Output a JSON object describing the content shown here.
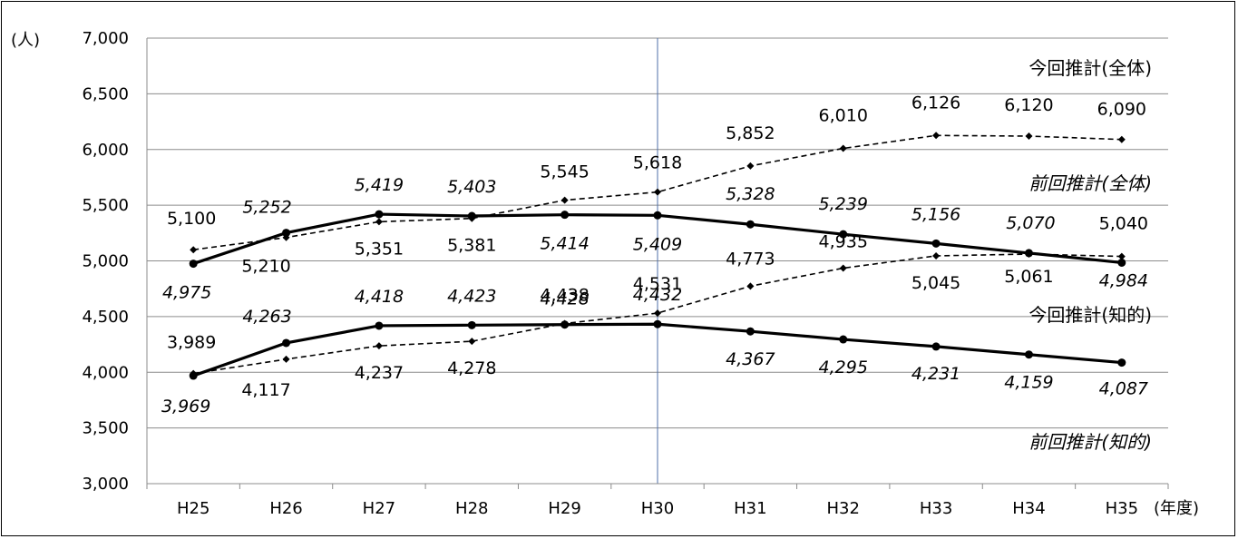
{
  "chart_data": {
    "type": "line",
    "y_unit": "(人)",
    "x_unit": "(年度)",
    "categories": [
      "H25",
      "H26",
      "H27",
      "H28",
      "H29",
      "H30",
      "H31",
      "H32",
      "H33",
      "H34",
      "H35"
    ],
    "ylim": [
      3000,
      7000
    ],
    "yticks": [
      3000,
      3500,
      4000,
      4500,
      5000,
      5500,
      6000,
      6500,
      7000
    ],
    "ytick_labels": [
      "3,000",
      "3,500",
      "4,000",
      "4,500",
      "5,000",
      "5,500",
      "6,000",
      "6,500",
      "7,000"
    ],
    "grid": "horizontal",
    "reference_line": "H30",
    "series": [
      {
        "name": "今回推計(全体)",
        "style": "dashed-diamond",
        "values": [
          5100,
          5210,
          5351,
          5381,
          5545,
          5618,
          5852,
          6010,
          6126,
          6120,
          6090
        ],
        "labels": [
          "5,100",
          "5,210",
          "5,351",
          "5,381",
          "5,545",
          "5,618",
          "5,852",
          "6,010",
          "6,126",
          "6,120",
          "6,090"
        ]
      },
      {
        "name": "前回推計(全体)",
        "style": "solid-circle",
        "values": [
          4975,
          5252,
          5419,
          5403,
          5414,
          5409,
          5328,
          5239,
          5156,
          5070,
          4984
        ],
        "labels": [
          "4,975",
          "5,252",
          "5,419",
          "5,403",
          "5,414",
          "5,409",
          "5,328",
          "5,239",
          "5,156",
          "5,070",
          "4,984"
        ]
      },
      {
        "name": "今回推計(知的)",
        "style": "dashed-diamond",
        "values": [
          3989,
          4117,
          4237,
          4278,
          4438,
          4531,
          4773,
          4935,
          5045,
          5061,
          5040
        ],
        "labels": [
          "3,989",
          "4,117",
          "4,237",
          "4,278",
          "4,438",
          "4,531",
          "4,773",
          "4,935",
          "5,045",
          "5,061",
          "5,040"
        ]
      },
      {
        "name": "前回推計(知的)",
        "style": "solid-circle",
        "values": [
          3969,
          4263,
          4418,
          4423,
          4428,
          4432,
          4367,
          4295,
          4231,
          4159,
          4087
        ],
        "labels": [
          "3,969",
          "4,263",
          "4,418",
          "4,423",
          "4,428",
          "4,432",
          "4,367",
          "4,295",
          "4,231",
          "4,159",
          "4,087"
        ]
      }
    ]
  }
}
